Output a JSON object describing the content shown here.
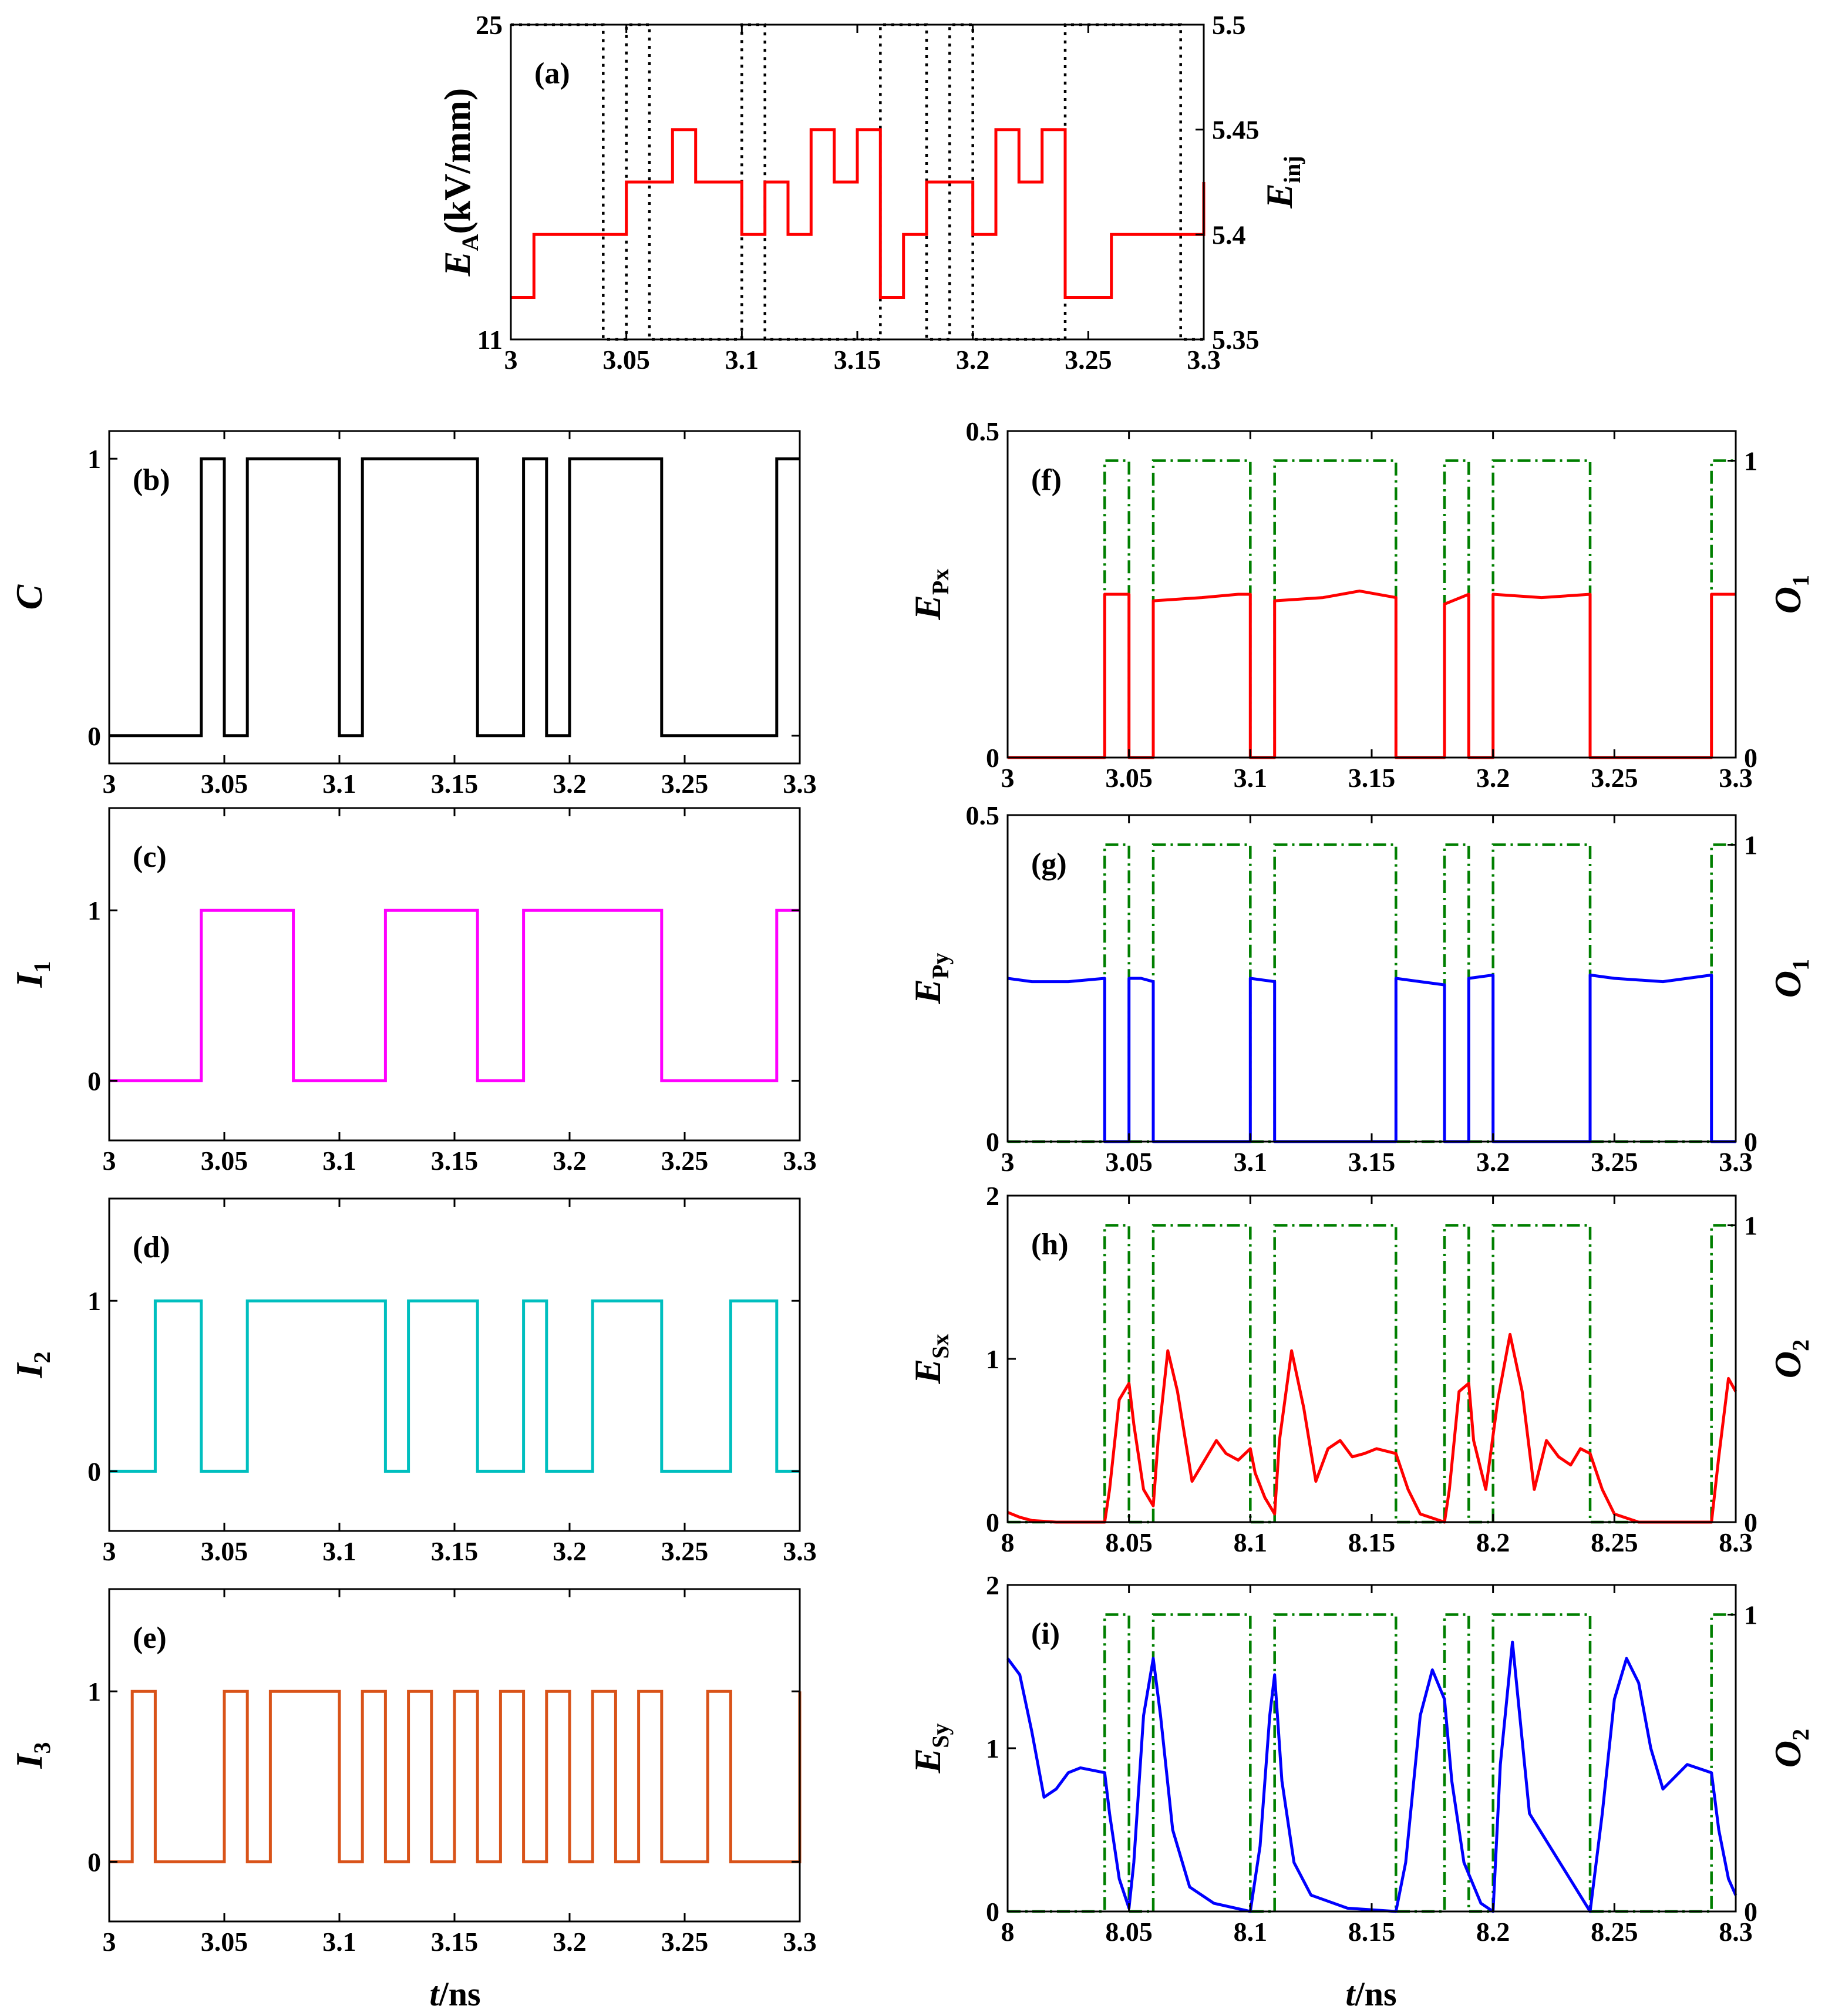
{
  "figure": {
    "xlabel_t": "t",
    "xlabel_unit": "/ns"
  },
  "colors": {
    "red": "#ff0000",
    "black": "#000000",
    "magenta": "#ff00ff",
    "cyan": "#00bfbf",
    "orange": "#d95319",
    "blue": "#0000ff",
    "green": "#007f00"
  },
  "chart_data": [
    {
      "id": "a",
      "type": "line",
      "label": "(a)",
      "ylabel_main": "E",
      "ylabel_sub": "A",
      "ylabel_suffix": "(kV/mm)",
      "ylabel_right_main": "E",
      "ylabel_right_sub": "inj",
      "xlim": [
        3,
        3.3
      ],
      "ylim": [
        11,
        25
      ],
      "ylim_right": [
        5.35,
        5.5
      ],
      "xticks": [
        "3",
        "3.05",
        "3.1",
        "3.15",
        "3.2",
        "3.25",
        "3.3"
      ],
      "yticks": [
        "11",
        "25"
      ],
      "yticks_right": [
        "5.35",
        "5.4",
        "5.45",
        "5.5"
      ],
      "series": [
        {
          "name": "E_A",
          "axis": "left",
          "style": "dotted",
          "color": "black",
          "step": true,
          "x": [
            3.0,
            3.04,
            3.05,
            3.06,
            3.1,
            3.11,
            3.16,
            3.18,
            3.19,
            3.2,
            3.24,
            3.29,
            3.3
          ],
          "y": [
            25,
            11,
            25,
            11,
            25,
            11,
            25,
            11,
            25,
            11,
            25,
            11,
            11
          ]
        },
        {
          "name": "E_inj",
          "axis": "right",
          "style": "solid",
          "color": "red",
          "step": true,
          "x": [
            3.0,
            3.01,
            3.05,
            3.07,
            3.08,
            3.1,
            3.11,
            3.12,
            3.13,
            3.14,
            3.15,
            3.16,
            3.17,
            3.18,
            3.2,
            3.21,
            3.22,
            3.23,
            3.24,
            3.26,
            3.3
          ],
          "y": [
            5.37,
            5.4,
            5.425,
            5.45,
            5.425,
            5.4,
            5.425,
            5.4,
            5.45,
            5.425,
            5.45,
            5.37,
            5.4,
            5.425,
            5.4,
            5.45,
            5.425,
            5.45,
            5.37,
            5.4,
            5.425
          ]
        }
      ]
    },
    {
      "id": "b",
      "type": "line",
      "label": "(b)",
      "ylabel_main": "C",
      "xlim": [
        3,
        3.3
      ],
      "ylim": [
        -0.1,
        1.1
      ],
      "xticks": [
        "3",
        "3.05",
        "3.1",
        "3.15",
        "3.2",
        "3.25",
        "3.3"
      ],
      "yticks": [
        "0",
        "1"
      ],
      "series": [
        {
          "name": "C",
          "color": "black",
          "style": "solid",
          "step": true,
          "x": [
            3.0,
            3.04,
            3.05,
            3.06,
            3.1,
            3.11,
            3.16,
            3.18,
            3.19,
            3.2,
            3.24,
            3.29,
            3.3
          ],
          "y": [
            0,
            1,
            0,
            1,
            0,
            1,
            0,
            1,
            0,
            1,
            0,
            1,
            1
          ]
        }
      ]
    },
    {
      "id": "c",
      "type": "line",
      "label": "(c)",
      "ylabel_main": "I",
      "ylabel_sub": "1",
      "xlim": [
        3,
        3.3
      ],
      "ylim": [
        -0.35,
        1.6
      ],
      "xticks": [
        "3",
        "3.05",
        "3.1",
        "3.15",
        "3.2",
        "3.25",
        "3.3"
      ],
      "yticks": [
        "0",
        "1"
      ],
      "series": [
        {
          "name": "I1",
          "color": "magenta",
          "style": "solid",
          "step": true,
          "x": [
            3.0,
            3.04,
            3.08,
            3.12,
            3.16,
            3.18,
            3.24,
            3.29,
            3.3
          ],
          "y": [
            0,
            1,
            0,
            1,
            0,
            1,
            0,
            1,
            1
          ]
        }
      ]
    },
    {
      "id": "d",
      "type": "line",
      "label": "(d)",
      "ylabel_main": "I",
      "ylabel_sub": "2",
      "xlim": [
        3,
        3.3
      ],
      "ylim": [
        -0.35,
        1.6
      ],
      "xticks": [
        "3",
        "3.05",
        "3.1",
        "3.15",
        "3.2",
        "3.25",
        "3.3"
      ],
      "yticks": [
        "0",
        "1"
      ],
      "series": [
        {
          "name": "I2",
          "color": "cyan",
          "style": "solid",
          "step": true,
          "x": [
            3.0,
            3.02,
            3.04,
            3.06,
            3.12,
            3.13,
            3.16,
            3.18,
            3.19,
            3.21,
            3.24,
            3.27,
            3.29,
            3.3
          ],
          "y": [
            0,
            1,
            0,
            1,
            0,
            1,
            0,
            1,
            0,
            1,
            0,
            1,
            0,
            0
          ]
        }
      ]
    },
    {
      "id": "e",
      "type": "line",
      "label": "(e)",
      "ylabel_main": "I",
      "ylabel_sub": "3",
      "xlim": [
        3,
        3.3
      ],
      "ylim": [
        -0.35,
        1.6
      ],
      "xticks": [
        "3",
        "3.05",
        "3.1",
        "3.15",
        "3.2",
        "3.25",
        "3.3"
      ],
      "yticks": [
        "0",
        "1"
      ],
      "xlabel": true,
      "series": [
        {
          "name": "I3",
          "color": "orange",
          "style": "solid",
          "step": true,
          "x": [
            3.0,
            3.01,
            3.02,
            3.05,
            3.06,
            3.07,
            3.1,
            3.11,
            3.12,
            3.13,
            3.14,
            3.15,
            3.16,
            3.17,
            3.18,
            3.19,
            3.2,
            3.21,
            3.22,
            3.23,
            3.24,
            3.26,
            3.27,
            3.3
          ],
          "y": [
            0,
            1,
            0,
            1,
            0,
            1,
            0,
            1,
            0,
            1,
            0,
            1,
            0,
            1,
            0,
            1,
            0,
            1,
            0,
            1,
            0,
            1,
            0,
            1
          ]
        }
      ]
    },
    {
      "id": "f",
      "type": "line",
      "label": "(f)",
      "ylabel_main": "E",
      "ylabel_sub": "Px",
      "ylabel_right_main": "O",
      "ylabel_right_sub": "1",
      "xlim": [
        3,
        3.3
      ],
      "ylim": [
        0,
        0.5
      ],
      "ylim_right": [
        0,
        1.1
      ],
      "xticks": [
        "3",
        "3.05",
        "3.1",
        "3.15",
        "3.2",
        "3.25",
        "3.3"
      ],
      "yticks": [
        "0",
        "0.5"
      ],
      "yticks_right": [
        "0",
        "1"
      ],
      "series": [
        {
          "name": "O1",
          "axis": "right",
          "color": "green",
          "style": "dashdot",
          "step": true,
          "x": [
            3.0,
            3.04,
            3.05,
            3.06,
            3.1,
            3.11,
            3.16,
            3.18,
            3.19,
            3.2,
            3.24,
            3.29,
            3.3
          ],
          "y": [
            0,
            1,
            0,
            1,
            0,
            1,
            0,
            1,
            0,
            1,
            0,
            1,
            1
          ]
        },
        {
          "name": "E_Px",
          "axis": "left",
          "color": "red",
          "style": "solid",
          "x": [
            3.0,
            3.04,
            3.04,
            3.045,
            3.05,
            3.05,
            3.06,
            3.06,
            3.08,
            3.095,
            3.1,
            3.1,
            3.11,
            3.11,
            3.13,
            3.145,
            3.16,
            3.16,
            3.18,
            3.18,
            3.19,
            3.19,
            3.2,
            3.2,
            3.22,
            3.24,
            3.24,
            3.29,
            3.29,
            3.3
          ],
          "y": [
            0,
            0,
            0.25,
            0.25,
            0.25,
            0,
            0,
            0.24,
            0.245,
            0.25,
            0.25,
            0,
            0,
            0.24,
            0.245,
            0.255,
            0.245,
            0,
            0,
            0.235,
            0.25,
            0,
            0,
            0.25,
            0.245,
            0.25,
            0,
            0,
            0.25,
            0.25
          ]
        }
      ]
    },
    {
      "id": "g",
      "type": "line",
      "label": "(g)",
      "ylabel_main": "E",
      "ylabel_sub": "Py",
      "ylabel_right_main": "O",
      "ylabel_right_sub": "1",
      "xlim": [
        3,
        3.3
      ],
      "ylim": [
        0,
        0.5
      ],
      "ylim_right": [
        0,
        1.1
      ],
      "xticks": [
        "3",
        "3.05",
        "3.1",
        "3.15",
        "3.2",
        "3.25",
        "3.3"
      ],
      "yticks": [
        "0",
        "0.5"
      ],
      "yticks_right": [
        "0",
        "1"
      ],
      "series": [
        {
          "name": "O1",
          "axis": "right",
          "color": "green",
          "style": "dashdot",
          "step": true,
          "x": [
            3.0,
            3.04,
            3.05,
            3.06,
            3.1,
            3.11,
            3.16,
            3.18,
            3.19,
            3.2,
            3.24,
            3.29,
            3.3
          ],
          "y": [
            0,
            1,
            0,
            1,
            0,
            1,
            0,
            1,
            0,
            1,
            0,
            1,
            1
          ]
        },
        {
          "name": "E_Py",
          "axis": "left",
          "color": "blue",
          "style": "solid",
          "x": [
            3.0,
            3.01,
            3.025,
            3.04,
            3.04,
            3.05,
            3.05,
            3.055,
            3.06,
            3.06,
            3.1,
            3.1,
            3.11,
            3.11,
            3.16,
            3.16,
            3.17,
            3.18,
            3.18,
            3.19,
            3.19,
            3.2,
            3.2,
            3.24,
            3.24,
            3.25,
            3.27,
            3.29,
            3.29,
            3.3
          ],
          "y": [
            0.25,
            0.245,
            0.245,
            0.25,
            0,
            0,
            0.25,
            0.25,
            0.245,
            0,
            0,
            0.25,
            0.245,
            0,
            0,
            0.25,
            0.245,
            0.24,
            0,
            0,
            0.25,
            0.255,
            0,
            0,
            0.255,
            0.25,
            0.245,
            0.255,
            0,
            0
          ]
        }
      ]
    },
    {
      "id": "h",
      "type": "line",
      "label": "(h)",
      "ylabel_main": "E",
      "ylabel_sub": "Sx",
      "ylabel_right_main": "O",
      "ylabel_right_sub": "2",
      "xlim": [
        8,
        8.3
      ],
      "ylim": [
        0,
        2
      ],
      "ylim_right": [
        0,
        1.1
      ],
      "xticks": [
        "8",
        "8.05",
        "8.1",
        "8.15",
        "8.2",
        "8.25",
        "8.3"
      ],
      "yticks": [
        "0",
        "1",
        "2"
      ],
      "yticks_right": [
        "0",
        "1"
      ],
      "xlabel": true,
      "series": [
        {
          "name": "O2",
          "axis": "right",
          "color": "green",
          "style": "dashdot",
          "step": true,
          "x": [
            8.0,
            8.04,
            8.05,
            8.06,
            8.1,
            8.11,
            8.16,
            8.18,
            8.19,
            8.2,
            8.24,
            8.29,
            8.3
          ],
          "y": [
            0,
            1,
            0,
            1,
            0,
            1,
            0,
            1,
            0,
            1,
            0,
            1,
            1
          ]
        },
        {
          "name": "E_Sx",
          "axis": "left",
          "color": "red",
          "style": "solid",
          "x": [
            8.0,
            8.005,
            8.01,
            8.02,
            8.04,
            8.042,
            8.046,
            8.05,
            8.052,
            8.056,
            8.06,
            8.062,
            8.066,
            8.07,
            8.076,
            8.08,
            8.086,
            8.09,
            8.095,
            8.1,
            8.102,
            8.106,
            8.11,
            8.112,
            8.117,
            8.122,
            8.127,
            8.132,
            8.137,
            8.142,
            8.147,
            8.152,
            8.16,
            8.165,
            8.17,
            8.18,
            8.182,
            8.186,
            8.19,
            8.192,
            8.197,
            8.202,
            8.207,
            8.212,
            8.217,
            8.222,
            8.227,
            8.232,
            8.236,
            8.24,
            8.245,
            8.25,
            8.26,
            8.29,
            8.293,
            8.297,
            8.3
          ],
          "y": [
            0.06,
            0.03,
            0.01,
            0,
            0,
            0.2,
            0.75,
            0.85,
            0.6,
            0.2,
            0.1,
            0.5,
            1.05,
            0.8,
            0.25,
            0.35,
            0.5,
            0.42,
            0.38,
            0.45,
            0.3,
            0.15,
            0.05,
            0.5,
            1.05,
            0.7,
            0.25,
            0.45,
            0.5,
            0.4,
            0.42,
            0.45,
            0.42,
            0.2,
            0.05,
            0,
            0.2,
            0.8,
            0.85,
            0.5,
            0.2,
            0.75,
            1.15,
            0.8,
            0.2,
            0.5,
            0.4,
            0.35,
            0.45,
            0.42,
            0.2,
            0.05,
            0,
            0,
            0.4,
            0.88,
            0.8
          ]
        }
      ]
    },
    {
      "id": "i",
      "type": "line",
      "label": "(i)",
      "ylabel_main": "E",
      "ylabel_sub": "Sy",
      "ylabel_right_main": "O",
      "ylabel_right_sub": "2",
      "xlim": [
        8,
        8.3
      ],
      "ylim": [
        0,
        2
      ],
      "ylim_right": [
        0,
        1.1
      ],
      "xticks": [
        "8",
        "8.05",
        "8.1",
        "8.15",
        "8.2",
        "8.25",
        "8.3"
      ],
      "yticks": [
        "0",
        "1",
        "2"
      ],
      "yticks_right": [
        "0",
        "1"
      ],
      "xlabel": true,
      "series": [
        {
          "name": "O2",
          "axis": "right",
          "color": "green",
          "style": "dashdot",
          "step": true,
          "x": [
            8.0,
            8.04,
            8.05,
            8.06,
            8.1,
            8.11,
            8.16,
            8.18,
            8.19,
            8.2,
            8.24,
            8.29,
            8.3
          ],
          "y": [
            0,
            1,
            0,
            1,
            0,
            1,
            0,
            1,
            0,
            1,
            0,
            1,
            1
          ]
        },
        {
          "name": "E_Sy",
          "axis": "left",
          "color": "blue",
          "style": "solid",
          "x": [
            8.0,
            8.005,
            8.01,
            8.015,
            8.02,
            8.025,
            8.03,
            8.04,
            8.042,
            8.046,
            8.05,
            8.052,
            8.056,
            8.06,
            8.063,
            8.068,
            8.075,
            8.085,
            8.1,
            8.104,
            8.108,
            8.11,
            8.113,
            8.118,
            8.125,
            8.14,
            8.16,
            8.164,
            8.17,
            8.175,
            8.18,
            8.183,
            8.188,
            8.195,
            8.2,
            8.203,
            8.208,
            8.215,
            8.24,
            8.245,
            8.25,
            8.255,
            8.26,
            8.265,
            8.27,
            8.28,
            8.29,
            8.293,
            8.297,
            8.3
          ],
          "y": [
            1.55,
            1.45,
            1.1,
            0.7,
            0.75,
            0.85,
            0.88,
            0.85,
            0.6,
            0.2,
            0.02,
            0.3,
            1.2,
            1.55,
            1.2,
            0.5,
            0.15,
            0.05,
            0,
            0.4,
            1.2,
            1.45,
            0.8,
            0.3,
            0.1,
            0.02,
            0,
            0.3,
            1.2,
            1.48,
            1.3,
            0.8,
            0.3,
            0.05,
            0,
            0.9,
            1.65,
            0.6,
            0,
            0.6,
            1.3,
            1.55,
            1.4,
            1.0,
            0.75,
            0.9,
            0.85,
            0.5,
            0.2,
            0.1
          ]
        }
      ]
    }
  ]
}
